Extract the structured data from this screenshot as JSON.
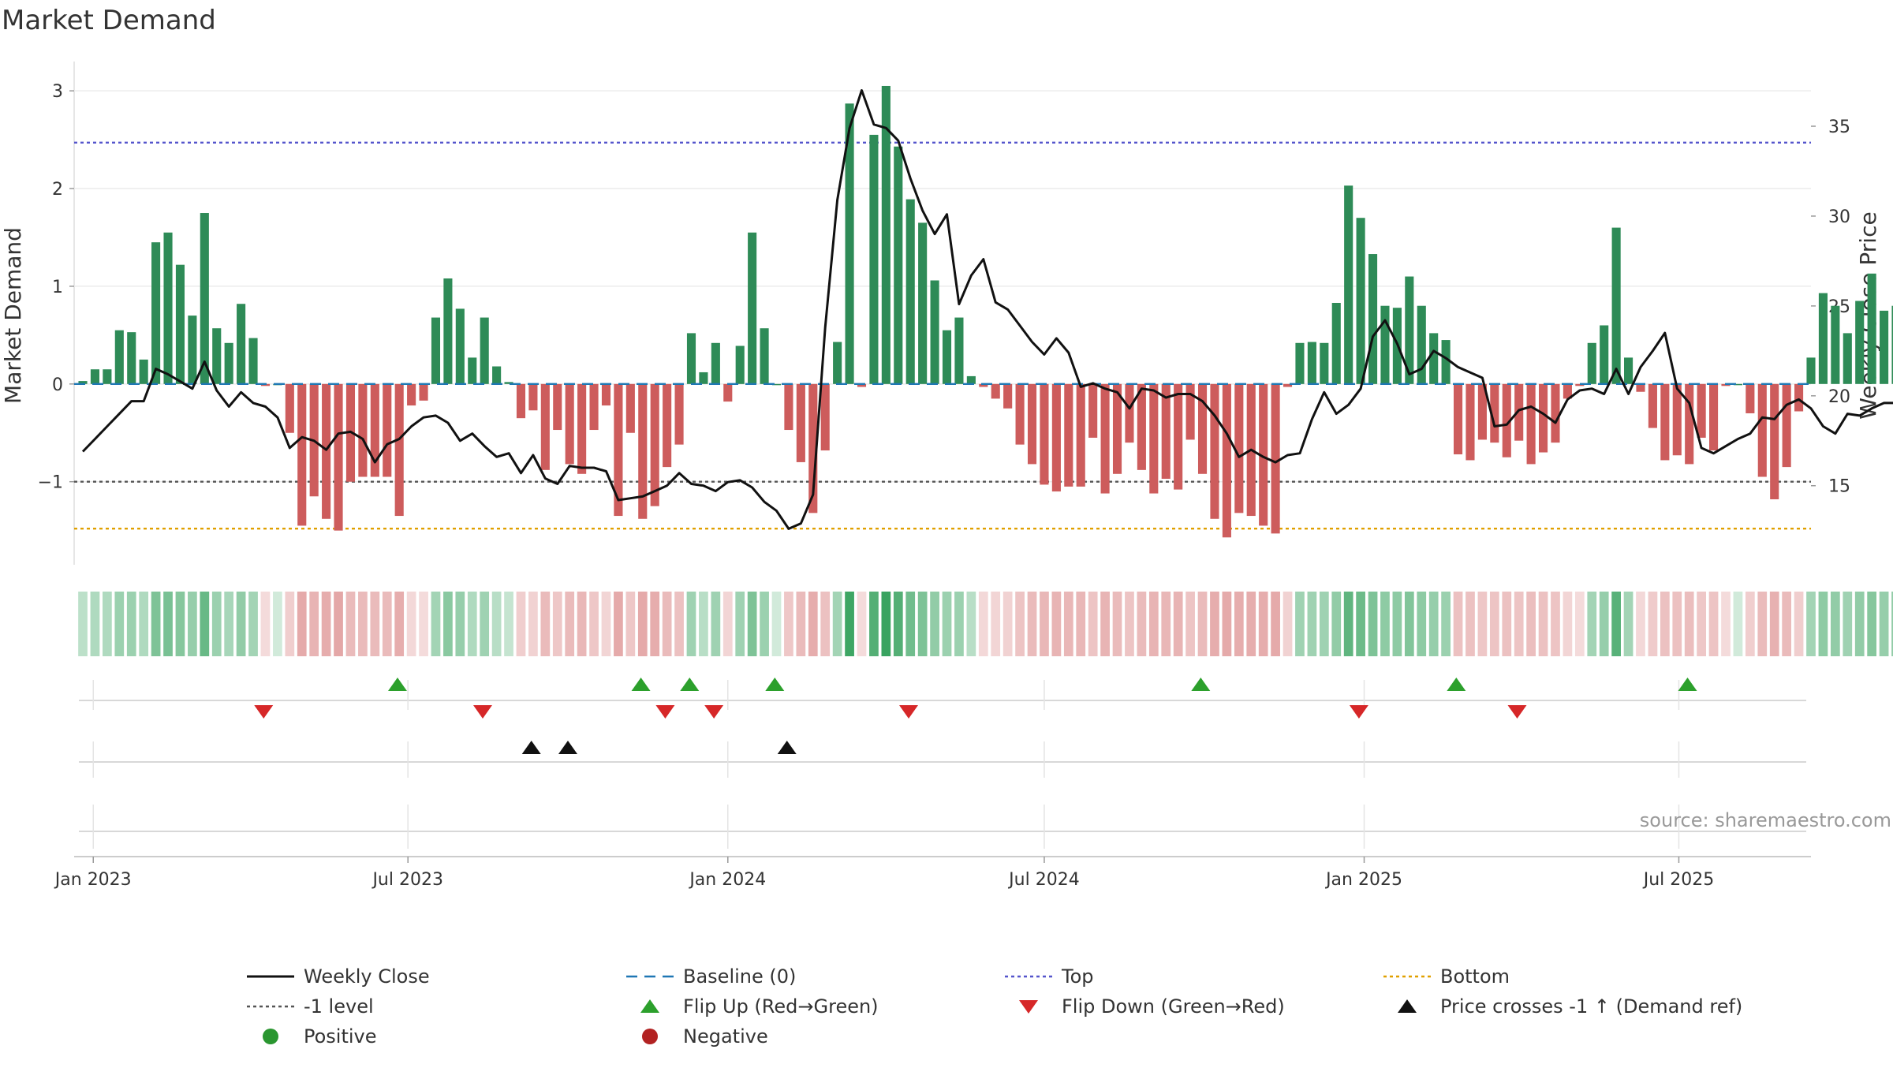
{
  "title": "Market Demand",
  "source_note": "source: sharemaestro.com",
  "colors": {
    "bar_positive": "#2e8b57",
    "bar_negative": "#cd5c5c",
    "price_line": "#111111",
    "baseline": "#1f77b4",
    "top_line": "#5555cc",
    "minus1_line": "#555555",
    "bottom_line": "#e0a000",
    "flip_up": "#2ca02c",
    "flip_down": "#d62728",
    "cross": "#111111",
    "heat_positive": "#2e9e57",
    "heat_negative": "#cd5c5c",
    "legend_positive_dot": "#2a9630",
    "legend_negative_dot": "#b22222"
  },
  "chart_data": {
    "type": "bar",
    "ylabel": "Market Demand",
    "y2label": "Weekly Close Price",
    "ylim": [
      -1.85,
      3.3
    ],
    "y2lim": [
      10.6,
      38.6
    ],
    "yticks": [
      -1,
      0,
      1,
      2,
      3
    ],
    "ytick_labels": [
      "−1",
      "0",
      "1",
      "2",
      "3"
    ],
    "y2ticks": [
      15,
      20,
      25,
      30,
      35
    ],
    "y2tick_labels": [
      "15",
      "20",
      "25",
      "30",
      "35"
    ],
    "x_range": [
      "2022-12-21",
      "2025-09-15"
    ],
    "xticks": [
      "2023-01-01",
      "2023-07-01",
      "2024-01-01",
      "2024-07-01",
      "2025-01-01",
      "2025-07-01"
    ],
    "xtick_labels": [
      "Jan 2023",
      "Jul 2023",
      "Jan 2024",
      "Jul 2024",
      "Jan 2025",
      "Jul 2025"
    ],
    "grid": true,
    "legend_position": "bottom",
    "start_date": "2022-12-26",
    "demand": [
      0.03,
      0.15,
      0.15,
      0.55,
      0.53,
      0.25,
      1.45,
      1.55,
      1.22,
      0.7,
      1.75,
      0.57,
      0.42,
      0.82,
      0.47,
      -0.02,
      0,
      -0.5,
      -1.45,
      -1.15,
      -1.38,
      -1.5,
      -1.0,
      -0.95,
      -0.95,
      -0.95,
      -1.35,
      -0.22,
      -0.17,
      0.68,
      1.08,
      0.77,
      0.27,
      0.68,
      0.18,
      0.02,
      -0.35,
      -0.27,
      -0.88,
      -0.47,
      -0.82,
      -0.92,
      -0.47,
      -0.22,
      -1.35,
      -0.5,
      -1.38,
      -1.25,
      -0.85,
      -0.62,
      0.52,
      0.12,
      0.42,
      -0.18,
      0.39,
      1.55,
      0.57,
      0,
      -0.47,
      -0.8,
      -1.32,
      -0.68,
      0.43,
      2.87,
      -0.03,
      2.55,
      3.05,
      2.43,
      1.89,
      1.65,
      1.06,
      0.55,
      0.68,
      0.08,
      -0.03,
      -0.15,
      -0.25,
      -0.62,
      -0.82,
      -1.03,
      -1.1,
      -1.05,
      -1.05,
      -0.55,
      -1.12,
      -0.92,
      -0.6,
      -0.88,
      -1.12,
      -0.97,
      -1.08,
      -0.57,
      -0.92,
      -1.38,
      -1.57,
      -1.32,
      -1.35,
      -1.45,
      -1.53,
      -0.03,
      0.42,
      0.43,
      0.42,
      0.83,
      2.03,
      1.7,
      1.33,
      0.8,
      0.78,
      1.1,
      0.8,
      0.52,
      0.45,
      -0.72,
      -0.78,
      -0.57,
      -0.6,
      -0.75,
      -0.58,
      -0.82,
      -0.7,
      -0.6,
      -0.15,
      -0.02,
      0.42,
      0.6,
      1.6,
      0.27,
      -0.08,
      -0.45,
      -0.78,
      -0.73,
      -0.82,
      -0.55,
      -0.68,
      -0.02,
      0,
      -0.3,
      -0.95,
      -1.18,
      -0.85,
      -0.28,
      0.27,
      0.93,
      0.8,
      0.52,
      0.85,
      1.13,
      0.75,
      0.8,
      0.7,
      0.52,
      0.48
    ],
    "close": [
      16.9,
      17.6,
      18.3,
      19.0,
      19.7,
      19.7,
      21.5,
      21.2,
      20.8,
      20.4,
      21.9,
      20.3,
      19.4,
      20.2,
      19.6,
      19.4,
      18.8,
      17.1,
      17.7,
      17.5,
      17.0,
      17.9,
      18.0,
      17.6,
      16.3,
      17.3,
      17.6,
      18.3,
      18.8,
      18.9,
      18.5,
      17.5,
      17.9,
      17.2,
      16.6,
      16.8,
      15.7,
      16.7,
      15.4,
      15.1,
      16.1,
      16.0,
      16.0,
      15.8,
      14.2,
      14.3,
      14.4,
      14.7,
      15.0,
      15.7,
      15.1,
      15.0,
      14.7,
      15.2,
      15.3,
      14.9,
      14.1,
      13.6,
      12.6,
      12.9,
      14.5,
      23.8,
      30.9,
      34.9,
      37.0,
      35.1,
      34.9,
      34.2,
      32.1,
      30.3,
      29.0,
      30.1,
      25.1,
      26.7,
      27.6,
      25.2,
      24.8,
      23.9,
      23.0,
      22.3,
      23.2,
      22.4,
      20.5,
      20.7,
      20.4,
      20.2,
      19.3,
      20.4,
      20.3,
      19.9,
      20.1,
      20.1,
      19.7,
      18.9,
      17.9,
      16.6,
      17.0,
      16.6,
      16.3,
      16.7,
      16.8,
      18.7,
      20.2,
      19.0,
      19.5,
      20.4,
      23.3,
      24.2,
      22.9,
      21.2,
      21.5,
      22.5,
      22.1,
      21.6,
      21.3,
      21.0,
      18.3,
      18.4,
      19.2,
      19.4,
      19.0,
      18.5,
      19.8,
      20.3,
      20.4,
      20.1,
      21.5,
      20.1,
      21.6,
      22.5,
      23.5,
      20.4,
      19.6,
      17.1,
      16.8,
      17.2,
      17.6,
      17.9,
      18.8,
      18.7,
      19.5,
      19.8,
      19.3,
      18.3,
      17.9,
      19.0,
      18.9,
      19.3,
      19.6,
      19.6,
      19.3,
      19.6,
      20.1,
      20.2,
      20.1,
      19.5,
      20.5,
      20.4,
      19.9
    ],
    "heat_levels": [
      0.32,
      0.38,
      0.38,
      0.48,
      0.48,
      0.38,
      0.62,
      0.64,
      0.58,
      0.5,
      0.72,
      0.48,
      0.42,
      0.52,
      0.44,
      0.22,
      0.22,
      0.3,
      0.52,
      0.46,
      0.5,
      0.54,
      0.42,
      0.42,
      0.42,
      0.42,
      0.5,
      0.24,
      0.22,
      0.44,
      0.56,
      0.5,
      0.38,
      0.46,
      0.34,
      0.28,
      0.3,
      0.28,
      0.42,
      0.34,
      0.42,
      0.44,
      0.34,
      0.26,
      0.52,
      0.34,
      0.52,
      0.5,
      0.42,
      0.38,
      0.46,
      0.34,
      0.46,
      0.26,
      0.46,
      0.62,
      0.48,
      0.22,
      0.34,
      0.42,
      0.5,
      0.38,
      0.44,
      0.92,
      0.22,
      0.82,
      0.95,
      0.82,
      0.68,
      0.62,
      0.52,
      0.48,
      0.48,
      0.34,
      0.24,
      0.26,
      0.28,
      0.36,
      0.42,
      0.44,
      0.46,
      0.44,
      0.44,
      0.36,
      0.46,
      0.42,
      0.36,
      0.42,
      0.46,
      0.44,
      0.46,
      0.36,
      0.42,
      0.5,
      0.52,
      0.5,
      0.5,
      0.5,
      0.52,
      0.28,
      0.46,
      0.46,
      0.46,
      0.52,
      0.76,
      0.7,
      0.62,
      0.54,
      0.54,
      0.6,
      0.54,
      0.5,
      0.48,
      0.38,
      0.38,
      0.34,
      0.36,
      0.38,
      0.36,
      0.4,
      0.38,
      0.36,
      0.26,
      0.22,
      0.44,
      0.5,
      0.8,
      0.44,
      0.24,
      0.32,
      0.38,
      0.38,
      0.4,
      0.34,
      0.36,
      0.22,
      0.22,
      0.3,
      0.42,
      0.48,
      0.42,
      0.3,
      0.44,
      0.54,
      0.52,
      0.46,
      0.52,
      0.58,
      0.5,
      0.52,
      0.5,
      0.46,
      0.46
    ],
    "reference_lines": [
      {
        "key": "top",
        "value": 2.47
      },
      {
        "key": "minus1",
        "value": -1
      },
      {
        "key": "bottom",
        "value": -1.48
      }
    ],
    "flip_up_dates": [
      "2023-06-25",
      "2023-11-12",
      "2023-12-10",
      "2024-01-28",
      "2024-09-29",
      "2025-02-23",
      "2025-07-06"
    ],
    "flip_down_dates": [
      "2023-04-09",
      "2023-08-13",
      "2023-11-26",
      "2023-12-24",
      "2024-04-14",
      "2024-12-29",
      "2025-03-30"
    ],
    "price_cross_dates": [
      "2023-09-10",
      "2023-10-01",
      "2024-02-04"
    ],
    "series": [
      {
        "key": "close",
        "name": "Weekly Close"
      },
      {
        "key": "baseline",
        "name": "Baseline (0)"
      },
      {
        "key": "top",
        "name": "Top"
      },
      {
        "key": "bottom",
        "name": "Bottom"
      },
      {
        "key": "minus1",
        "name": "-1 level"
      },
      {
        "key": "flip_up",
        "name": "Flip Up (Red→Green)"
      },
      {
        "key": "flip_down",
        "name": "Flip Down (Green→Red)"
      },
      {
        "key": "cross",
        "name": "Price crosses -1 ↑ (Demand ref)"
      },
      {
        "key": "positive",
        "name": "Positive"
      },
      {
        "key": "negative",
        "name": "Negative"
      }
    ]
  }
}
